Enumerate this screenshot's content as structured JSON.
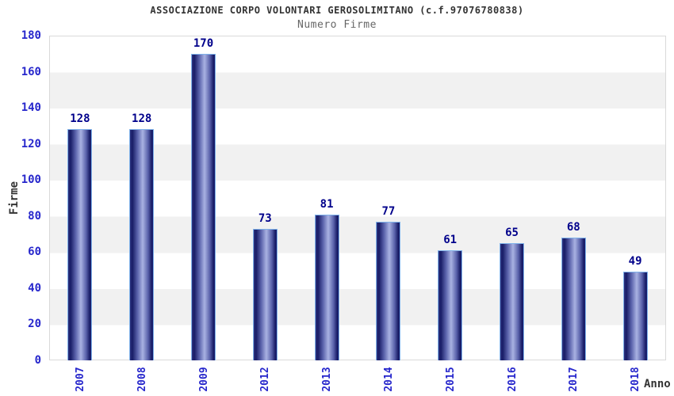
{
  "header": {
    "title": "ASSOCIAZIONE CORPO VOLONTARI GEROSOLIMITANO (c.f.97076780838)",
    "subtitle": "Numero Firme"
  },
  "chart_data": {
    "type": "bar",
    "title": "ASSOCIAZIONE CORPO VOLONTARI GEROSOLIMITANO (c.f.97076780838)",
    "subtitle": "Numero Firme",
    "categories": [
      "2007",
      "2008",
      "2009",
      "2012",
      "2013",
      "2014",
      "2015",
      "2016",
      "2017",
      "2018"
    ],
    "values": [
      128,
      128,
      170,
      73,
      81,
      77,
      61,
      65,
      68,
      49
    ],
    "xlabel": "Anno",
    "ylabel": "Firme",
    "ylim": [
      0,
      180
    ],
    "y_ticks": [
      0,
      20,
      40,
      60,
      80,
      100,
      120,
      140,
      160,
      180
    ],
    "grid": "alternating horizontal bands every 20 units",
    "legend_position": "none",
    "x_tick_rotation": -90
  },
  "colors": {
    "bar_dark": "#181c66",
    "bar_light": "#a9b2e2",
    "bar_border": "#7fb2ea",
    "axis_tick_text": "#2727cc",
    "value_label_text": "#00008b",
    "title_text": "#333333",
    "subtitle_text": "#666666",
    "band_gray": "#f1f1f1",
    "plot_border": "#d9d9d9",
    "background": "#ffffff"
  }
}
